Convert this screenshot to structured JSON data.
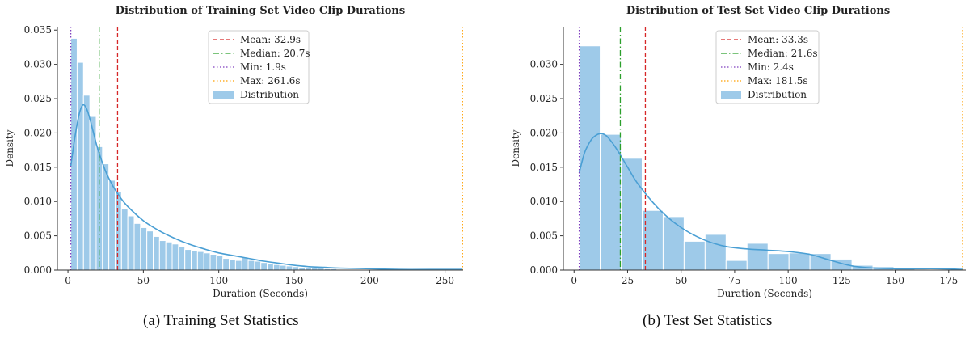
{
  "chart_data": [
    {
      "type": "bar",
      "title": "Distribution of Training Set Video Clip Durations",
      "xlabel": "Duration (Seconds)",
      "ylabel": "Density",
      "xlim": [
        -7,
        262
      ],
      "ylim": [
        0,
        0.0355
      ],
      "xticks": [
        0,
        50,
        100,
        150,
        200,
        250
      ],
      "yticks": [
        "0.000",
        "0.005",
        "0.010",
        "0.015",
        "0.020",
        "0.025",
        "0.030",
        "0.035"
      ],
      "caption": "(a) Training Set Statistics",
      "histogram": {
        "name": "Distribution",
        "bin_start": 1.9,
        "bin_width": 4.2,
        "values": [
          0.0338,
          0.0303,
          0.0255,
          0.0224,
          0.018,
          0.0155,
          0.0131,
          0.0115,
          0.0089,
          0.0079,
          0.0068,
          0.0062,
          0.0057,
          0.0049,
          0.0043,
          0.0041,
          0.0038,
          0.0034,
          0.003,
          0.0028,
          0.0027,
          0.0025,
          0.0023,
          0.0021,
          0.0017,
          0.0015,
          0.0014,
          0.0019,
          0.0014,
          0.0013,
          0.0011,
          0.0009,
          0.0008,
          0.0007,
          0.0006,
          0.0005,
          0.0004,
          0.0004,
          0.0003,
          0.0003,
          0.0002,
          0.0002,
          0.0001,
          0.0001,
          0.0001,
          0.0001,
          0.0001,
          0.0001
        ]
      },
      "kde": {
        "x": [
          1.9,
          4,
          6,
          8,
          10,
          12,
          14,
          16,
          18,
          20,
          25,
          30,
          35,
          40,
          50,
          60,
          70,
          80,
          90,
          100,
          110,
          120,
          130,
          140,
          150,
          160,
          170,
          180,
          200,
          220,
          240,
          261.6
        ],
        "y": [
          0.0152,
          0.0185,
          0.0212,
          0.0232,
          0.0241,
          0.0237,
          0.0225,
          0.0208,
          0.0191,
          0.0175,
          0.0144,
          0.0122,
          0.0105,
          0.0092,
          0.0072,
          0.0058,
          0.0047,
          0.0038,
          0.0031,
          0.0025,
          0.0021,
          0.0017,
          0.0013,
          0.001,
          0.0007,
          0.0005,
          0.0004,
          0.0003,
          0.0002,
          0.0001,
          0.0001,
          0.0001
        ]
      },
      "lines": [
        {
          "label": "Mean: 32.9s",
          "x": 32.9,
          "color": "#d62728",
          "style": "dashed"
        },
        {
          "label": "Median: 20.7s",
          "x": 20.7,
          "color": "#2ca02c",
          "style": "dashdot"
        },
        {
          "label": "Min: 1.9s",
          "x": 1.9,
          "color": "#7f3fbf",
          "style": "dotted"
        },
        {
          "label": "Max: 261.6s",
          "x": 261.6,
          "color": "#ff9f00",
          "style": "dotted"
        }
      ],
      "legend": {
        "position": "top-center",
        "entries": [
          "Mean: 32.9s",
          "Median: 20.7s",
          "Min: 1.9s",
          "Max: 261.6s",
          "Distribution"
        ]
      },
      "colors": {
        "bar": "#9ecae9",
        "kde": "#4a9fd4"
      }
    },
    {
      "type": "bar",
      "title": "Distribution of Test Set Video Clip Durations",
      "xlabel": "Duration (Seconds)",
      "ylabel": "Density",
      "xlim": [
        -5,
        183
      ],
      "ylim": [
        0,
        0.0355
      ],
      "xticks": [
        0,
        25,
        50,
        75,
        100,
        125,
        150,
        175
      ],
      "yticks": [
        "0.000",
        "0.005",
        "0.010",
        "0.015",
        "0.020",
        "0.025",
        "0.030"
      ],
      "caption": "(b) Test Set Statistics",
      "histogram": {
        "name": "Distribution",
        "bin_start": 2.4,
        "bin_width": 9.8,
        "values": [
          0.0327,
          0.0198,
          0.0163,
          0.0087,
          0.0078,
          0.0042,
          0.0052,
          0.0014,
          0.0039,
          0.0024,
          0.0025,
          0.0024,
          0.0016,
          0.0007,
          0.0005,
          0.0002,
          0.0001,
          0.0001
        ]
      },
      "kde": {
        "x": [
          2.4,
          5,
          8,
          10,
          12,
          14,
          16,
          20,
          25,
          30,
          40,
          50,
          60,
          70,
          80,
          90,
          100,
          110,
          120,
          130,
          140,
          150,
          160,
          170,
          181.5
        ],
        "y": [
          0.0142,
          0.0172,
          0.019,
          0.0196,
          0.0199,
          0.0198,
          0.0193,
          0.0176,
          0.015,
          0.0125,
          0.0088,
          0.0062,
          0.0045,
          0.0035,
          0.0031,
          0.0029,
          0.0027,
          0.0023,
          0.0014,
          0.0006,
          0.0003,
          0.0002,
          0.0002,
          0.0002,
          0.0001
        ]
      },
      "lines": [
        {
          "label": "Mean: 33.3s",
          "x": 33.3,
          "color": "#d62728",
          "style": "dashed"
        },
        {
          "label": "Median: 21.6s",
          "x": 21.6,
          "color": "#2ca02c",
          "style": "dashdot"
        },
        {
          "label": "Min: 2.4s",
          "x": 2.4,
          "color": "#7f3fbf",
          "style": "dotted"
        },
        {
          "label": "Max: 181.5s",
          "x": 181.5,
          "color": "#ff9f00",
          "style": "dotted"
        }
      ],
      "legend": {
        "position": "top-center",
        "entries": [
          "Mean: 33.3s",
          "Median: 21.6s",
          "Min: 2.4s",
          "Max: 181.5s",
          "Distribution"
        ]
      },
      "colors": {
        "bar": "#9ecae9",
        "kde": "#4a9fd4"
      }
    }
  ]
}
